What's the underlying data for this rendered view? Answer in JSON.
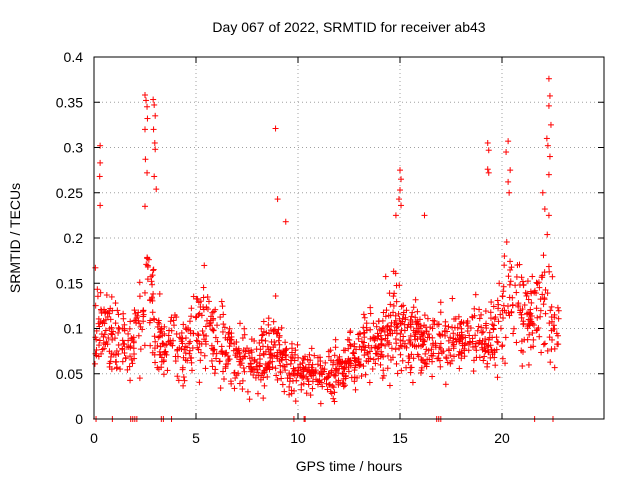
{
  "chart_data": {
    "type": "scatter",
    "title": "Day 067 of 2022, SRMTID for receiver ab43",
    "xlabel": "GPS time / hours",
    "ylabel": "SRMTID / TECUs",
    "xlim": [
      0,
      25
    ],
    "ylim": [
      0,
      0.4
    ],
    "xticks": [
      0,
      5,
      10,
      15,
      20
    ],
    "xtick_labels": [
      "0",
      "5",
      "10",
      "15",
      "20"
    ],
    "yticks": [
      0,
      0.05,
      0.1,
      0.15,
      0.2,
      0.25,
      0.3,
      0.35,
      0.4
    ],
    "ytick_labels": [
      "0",
      "0.05",
      "0.1",
      "0.15",
      "0.2",
      "0.25",
      "0.3",
      "0.35",
      "0.4"
    ],
    "grid": true,
    "marker": "+",
    "color": "#ff0000",
    "series": [
      {
        "name": "SRMTID",
        "profile_note": "envelope of the dense point cloud, values in data units",
        "x": [
          0,
          0.1,
          0.2,
          0.3,
          0.4,
          0.5,
          0.6,
          1.0,
          1.5,
          2.0,
          2.3,
          2.5,
          2.6,
          2.7,
          2.9,
          3.0,
          3.2,
          3.5,
          4.0,
          4.5,
          5.0,
          5.5,
          6.0,
          6.5,
          7.0,
          7.5,
          8.0,
          8.5,
          8.9,
          9.0,
          9.3,
          9.5,
          10.0,
          10.5,
          11.0,
          11.5,
          12.0,
          12.5,
          13.0,
          13.5,
          14.0,
          14.5,
          14.8,
          15.0,
          15.3,
          15.8,
          16.0,
          16.5,
          17.0,
          17.5,
          18.0,
          18.5,
          19.0,
          19.3,
          19.5,
          19.8,
          20.0,
          20.2,
          20.5,
          21.0,
          21.5,
          21.8,
          22.0,
          22.2,
          22.4,
          22.6,
          22.8
        ],
        "median": [
          0.1,
          0.11,
          0.12,
          0.11,
          0.12,
          0.11,
          0.1,
          0.09,
          0.08,
          0.09,
          0.11,
          0.13,
          0.15,
          0.13,
          0.12,
          0.1,
          0.09,
          0.08,
          0.085,
          0.08,
          0.1,
          0.11,
          0.1,
          0.08,
          0.07,
          0.065,
          0.055,
          0.07,
          0.08,
          0.075,
          0.065,
          0.06,
          0.055,
          0.055,
          0.05,
          0.05,
          0.055,
          0.06,
          0.075,
          0.085,
          0.09,
          0.1,
          0.11,
          0.1,
          0.09,
          0.09,
          0.085,
          0.08,
          0.085,
          0.09,
          0.095,
          0.09,
          0.085,
          0.08,
          0.09,
          0.1,
          0.12,
          0.14,
          0.13,
          0.12,
          0.11,
          0.12,
          0.13,
          0.12,
          0.11,
          0.1,
          0.1
        ],
        "spread": [
          0.04,
          0.05,
          0.06,
          0.06,
          0.06,
          0.05,
          0.04,
          0.04,
          0.035,
          0.04,
          0.05,
          0.06,
          0.06,
          0.06,
          0.05,
          0.04,
          0.04,
          0.035,
          0.04,
          0.04,
          0.05,
          0.05,
          0.05,
          0.04,
          0.035,
          0.035,
          0.03,
          0.04,
          0.04,
          0.035,
          0.03,
          0.03,
          0.028,
          0.026,
          0.025,
          0.025,
          0.028,
          0.03,
          0.035,
          0.04,
          0.045,
          0.05,
          0.055,
          0.05,
          0.045,
          0.045,
          0.04,
          0.035,
          0.04,
          0.04,
          0.04,
          0.04,
          0.04,
          0.035,
          0.04,
          0.05,
          0.06,
          0.06,
          0.055,
          0.05,
          0.045,
          0.05,
          0.06,
          0.06,
          0.05,
          0.045,
          0.045
        ],
        "x_range": [
          0,
          22.8
        ],
        "y_range": [
          0.01,
          0.375
        ],
        "point_count": 1400
      }
    ],
    "outliers": [
      {
        "x": 0.3,
        "y": 0.302
      },
      {
        "x": 0.3,
        "y": 0.283
      },
      {
        "x": 0.28,
        "y": 0.268
      },
      {
        "x": 0.3,
        "y": 0.236
      },
      {
        "x": 2.5,
        "y": 0.358
      },
      {
        "x": 2.55,
        "y": 0.352
      },
      {
        "x": 2.6,
        "y": 0.345
      },
      {
        "x": 2.62,
        "y": 0.332
      },
      {
        "x": 2.5,
        "y": 0.32
      },
      {
        "x": 2.52,
        "y": 0.287
      },
      {
        "x": 2.6,
        "y": 0.272
      },
      {
        "x": 2.9,
        "y": 0.353
      },
      {
        "x": 2.95,
        "y": 0.347
      },
      {
        "x": 3.0,
        "y": 0.335
      },
      {
        "x": 2.92,
        "y": 0.32
      },
      {
        "x": 2.98,
        "y": 0.305
      },
      {
        "x": 3.0,
        "y": 0.298
      },
      {
        "x": 2.95,
        "y": 0.268
      },
      {
        "x": 3.05,
        "y": 0.254
      },
      {
        "x": 2.5,
        "y": 0.235
      },
      {
        "x": 8.9,
        "y": 0.321
      },
      {
        "x": 9.0,
        "y": 0.243
      },
      {
        "x": 9.4,
        "y": 0.218
      },
      {
        "x": 15.0,
        "y": 0.275
      },
      {
        "x": 15.05,
        "y": 0.265
      },
      {
        "x": 15.0,
        "y": 0.253
      },
      {
        "x": 14.95,
        "y": 0.243
      },
      {
        "x": 15.05,
        "y": 0.236
      },
      {
        "x": 14.8,
        "y": 0.225
      },
      {
        "x": 16.2,
        "y": 0.225
      },
      {
        "x": 19.3,
        "y": 0.305
      },
      {
        "x": 19.35,
        "y": 0.297
      },
      {
        "x": 19.3,
        "y": 0.276
      },
      {
        "x": 19.35,
        "y": 0.272
      },
      {
        "x": 20.3,
        "y": 0.307
      },
      {
        "x": 20.2,
        "y": 0.295
      },
      {
        "x": 20.4,
        "y": 0.275
      },
      {
        "x": 20.3,
        "y": 0.262
      },
      {
        "x": 20.35,
        "y": 0.25
      },
      {
        "x": 22.3,
        "y": 0.376
      },
      {
        "x": 22.35,
        "y": 0.357
      },
      {
        "x": 22.3,
        "y": 0.346
      },
      {
        "x": 22.4,
        "y": 0.325
      },
      {
        "x": 22.2,
        "y": 0.31
      },
      {
        "x": 22.25,
        "y": 0.302
      },
      {
        "x": 22.35,
        "y": 0.29
      },
      {
        "x": 22.3,
        "y": 0.27
      },
      {
        "x": 22.0,
        "y": 0.25
      },
      {
        "x": 22.1,
        "y": 0.232
      },
      {
        "x": 22.3,
        "y": 0.225
      }
    ],
    "zero_points_x": [
      0.1,
      0.9,
      1.8,
      1.9,
      2.0,
      2.1,
      3.3,
      3.4,
      3.8,
      9.8,
      10.3,
      10.35,
      16.8,
      16.9,
      17.0,
      21.6,
      22.5
    ]
  }
}
